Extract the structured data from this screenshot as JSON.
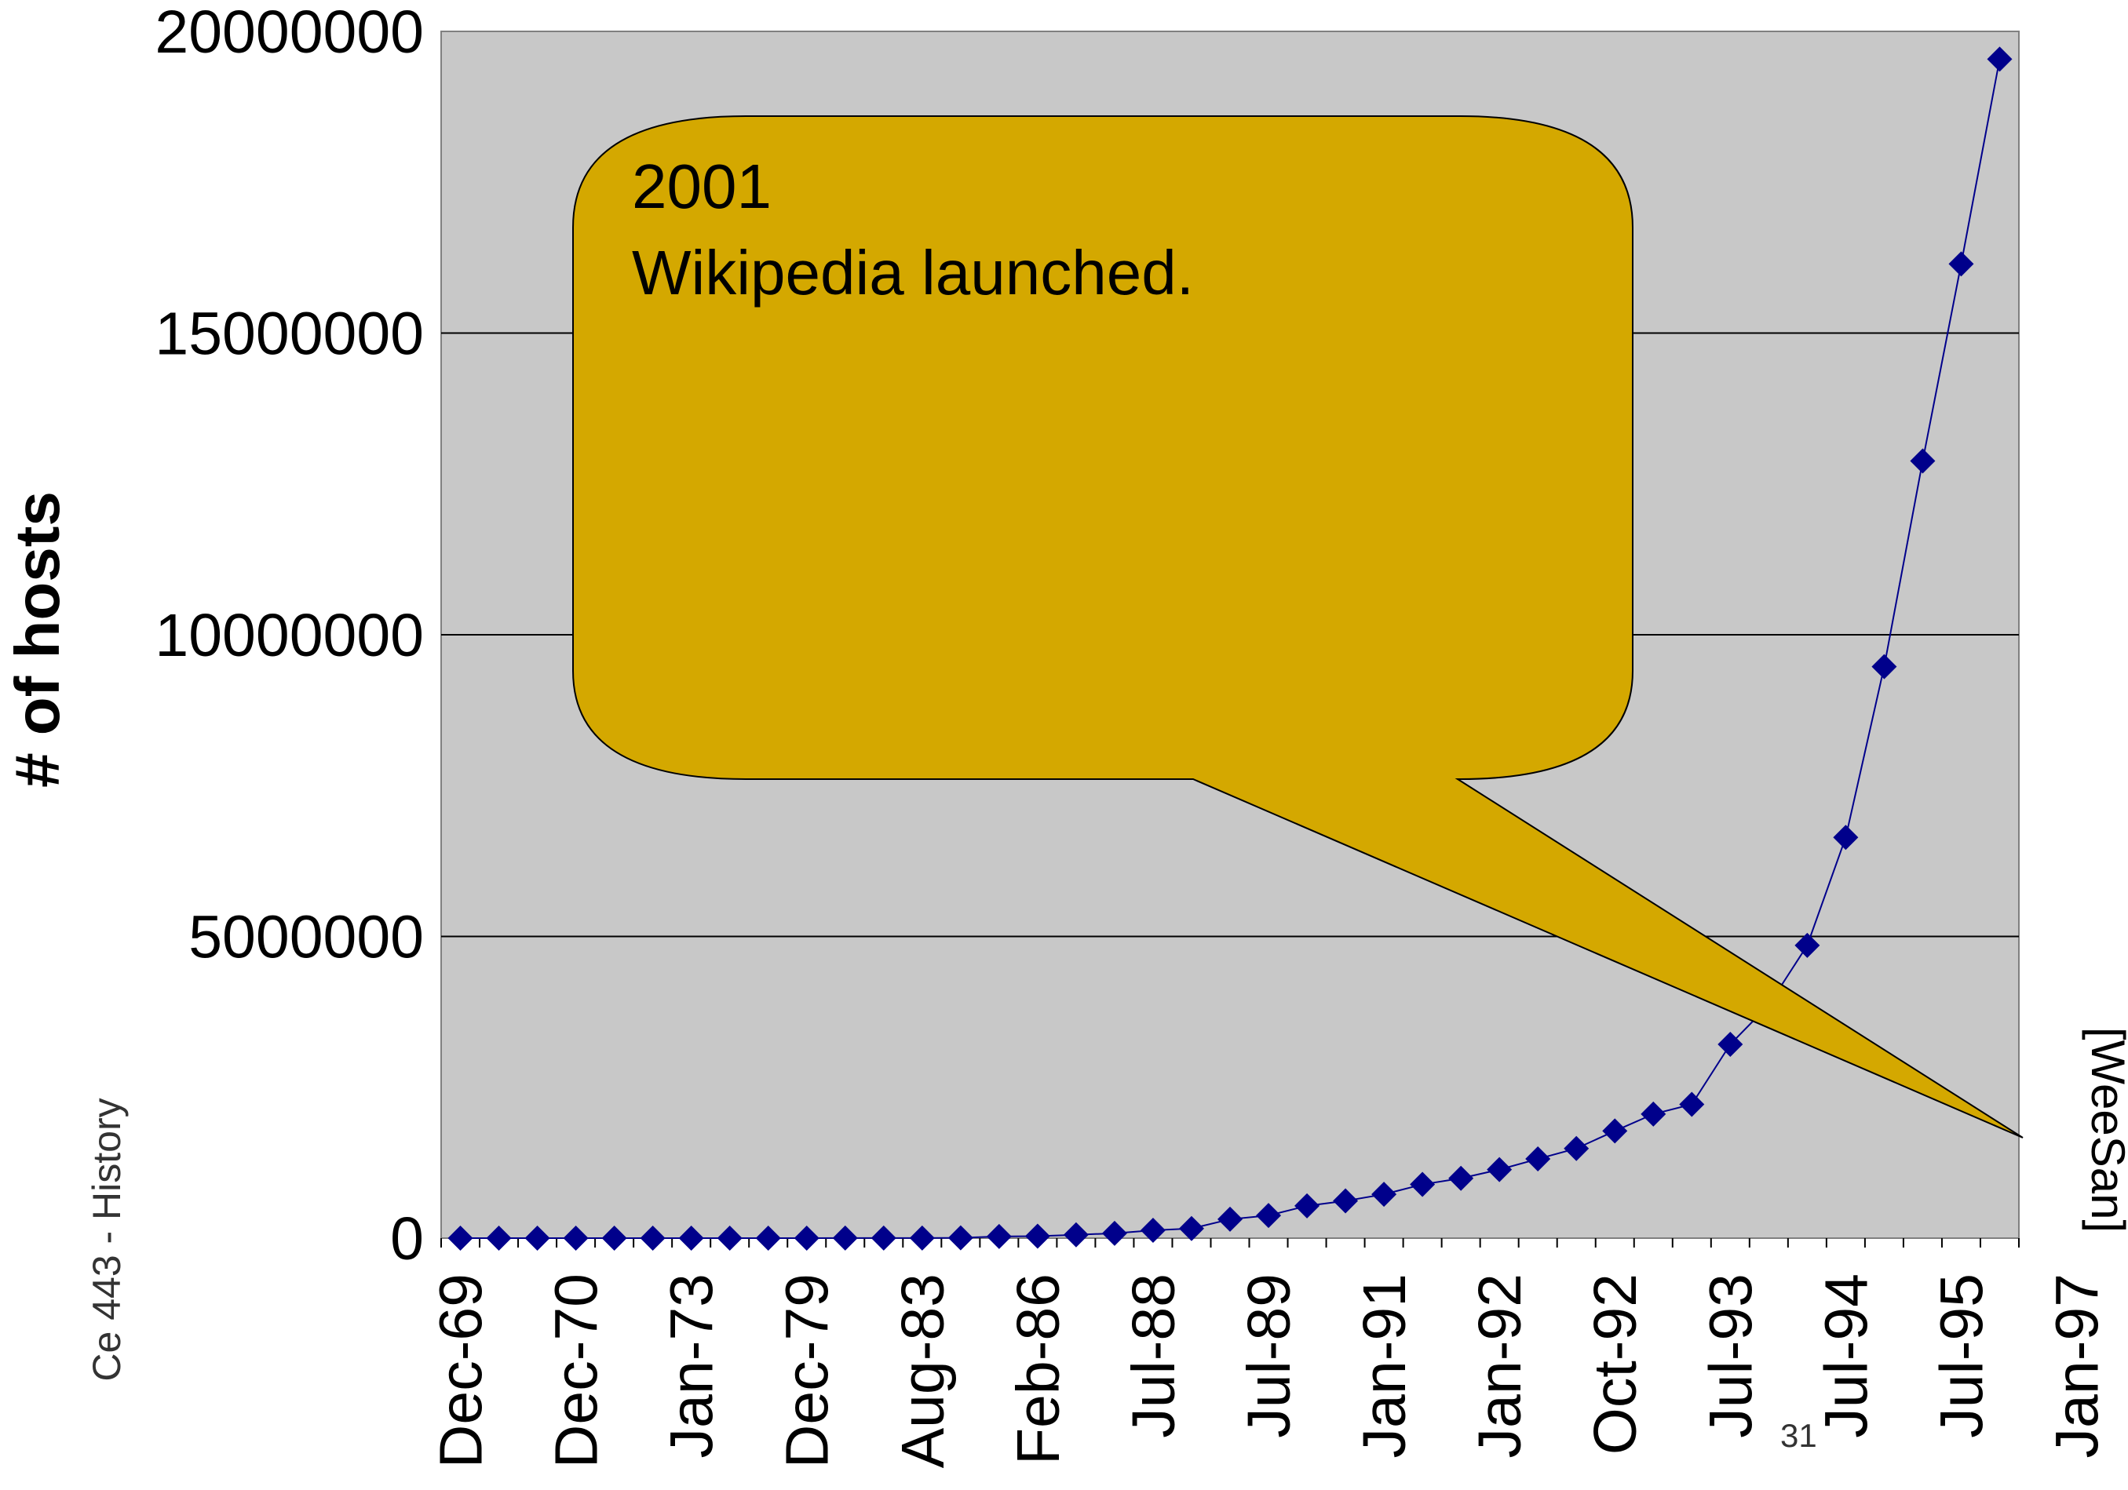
{
  "chart_data": {
    "type": "line",
    "ylabel": "# of hosts",
    "xlabel": "",
    "ylim": [
      0,
      20000000
    ],
    "yticks": [
      0,
      5000000,
      10000000,
      15000000,
      20000000
    ],
    "ytick_labels": [
      "0",
      "5000000",
      "10000000",
      "15000000",
      "20000000"
    ],
    "x_tick_labels": [
      "Dec-69",
      "Dec-70",
      "Jan-73",
      "Dec-79",
      "Aug-83",
      "Feb-86",
      "Jul-88",
      "Jul-89",
      "Jan-91",
      "Jan-92",
      "Oct-92",
      "Jul-93",
      "Jul-94",
      "Jul-95",
      "Jan-97"
    ],
    "grid": "horizontal",
    "marker": "diamond",
    "colors": {
      "series": "#00008b",
      "plot_bg": "#c8c8c8",
      "callout": "#d4a800"
    },
    "series": [
      {
        "values": [
          4,
          13,
          23,
          35,
          62,
          111,
          188,
          213,
          235,
          562,
          1024,
          1961,
          2308,
          5089,
          28174,
          33000,
          56000,
          80000,
          130000,
          159000,
          313000,
          376000,
          535000,
          617000,
          727000,
          890000,
          992000,
          1136000,
          1313000,
          1486000,
          1776000,
          2056000,
          2217000,
          3212000,
          3864000,
          4852000,
          6642000,
          9472000,
          12881000,
          16146000,
          19540000
        ]
      }
    ]
  },
  "callout": {
    "line1": "2001",
    "line2": "Wikipedia launched."
  },
  "side_label": "Ce 443 - History",
  "credit": "[WeeSan]",
  "page_number": "31"
}
